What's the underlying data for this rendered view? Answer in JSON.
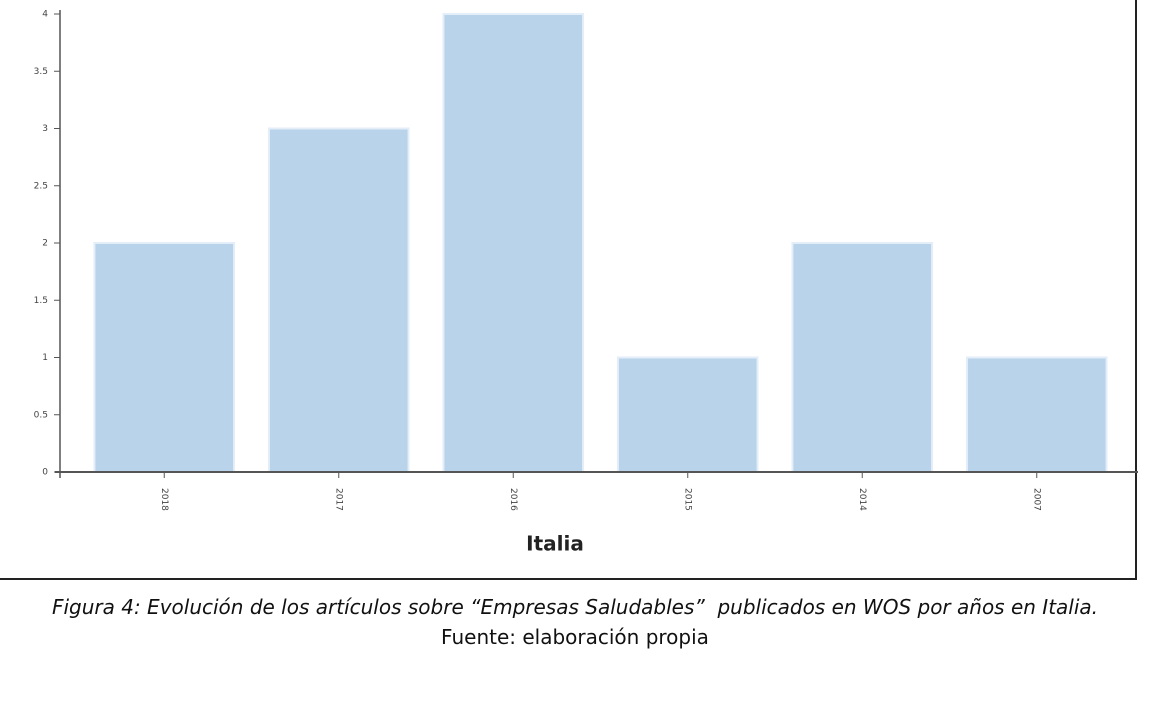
{
  "chart_data": {
    "type": "bar",
    "x_label": "Italia",
    "categories": [
      "2018",
      "2017",
      "2016",
      "2015",
      "2014",
      "2007"
    ],
    "values": [
      2,
      3,
      4,
      1,
      2,
      1
    ],
    "color": "#b9d3ea",
    "ylim": [
      0,
      4
    ],
    "yticks": [
      0,
      0.5,
      1,
      1.5,
      2,
      2.5,
      3,
      3.5,
      4
    ],
    "grid": false
  },
  "caption": {
    "figure": "Figura 4: Evolución de los artículos sobre “Empresas Saludables”  publicados en WOS por años en Italia.",
    "source": "Fuente: elaboración propia"
  }
}
